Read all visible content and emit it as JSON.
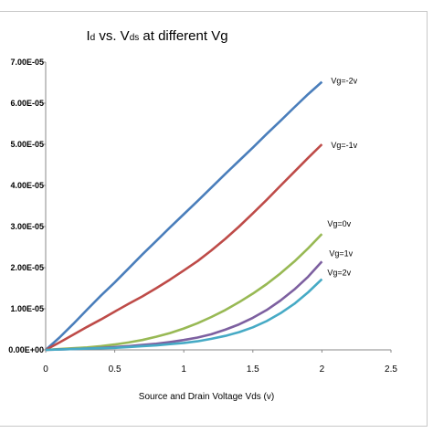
{
  "chart_data": {
    "type": "line",
    "title_parts": [
      {
        "text": "I",
        "sub": false
      },
      {
        "text": "d",
        "sub": true
      },
      {
        "text": " vs. V",
        "sub": false
      },
      {
        "text": "ds",
        "sub": true
      },
      {
        "text": " at different Vg",
        "sub": false
      }
    ],
    "xlabel": "Source and Drain Voltage Vds (v)",
    "ylabel": "",
    "xlim": [
      0,
      2.5
    ],
    "ylim": [
      0,
      7e-05
    ],
    "x_ticks": [
      "0",
      "0.5",
      "1",
      "1.5",
      "2",
      "2.5"
    ],
    "y_ticks": [
      "0.00E+00",
      "1.00E-05",
      "2.00E-05",
      "3.00E-05",
      "4.00E-05",
      "5.00E-05",
      "6.00E-05",
      "7.00E-05"
    ],
    "grid": false,
    "legend": "none",
    "x": [
      0,
      0.1,
      0.2,
      0.3,
      0.4,
      0.5,
      0.6,
      0.7,
      0.8,
      0.9,
      1.0,
      1.1,
      1.2,
      1.3,
      1.4,
      1.5,
      1.6,
      1.7,
      1.8,
      1.9,
      2.0
    ],
    "series": [
      {
        "name": "Vg=-2v",
        "color": "#4a7ebb",
        "values": [
          0,
          3e-06,
          6.3e-06,
          9.8e-06,
          1.32e-05,
          1.64e-05,
          1.98e-05,
          2.32e-05,
          2.65e-05,
          2.98e-05,
          3.3e-05,
          3.62e-05,
          3.95e-05,
          4.28e-05,
          4.6e-05,
          4.92e-05,
          5.25e-05,
          5.57e-05,
          5.9e-05,
          6.22e-05,
          6.52e-05
        ]
      },
      {
        "name": "Vg=-1v",
        "color": "#be4b48",
        "values": [
          0,
          1.8e-06,
          3.7e-06,
          5.6e-06,
          7.4e-06,
          9.3e-06,
          1.12e-05,
          1.3e-05,
          1.5e-05,
          1.71e-05,
          1.93e-05,
          2.16e-05,
          2.42e-05,
          2.7e-05,
          3e-05,
          3.32e-05,
          3.65e-05,
          3.99e-05,
          4.33e-05,
          4.67e-05,
          5e-05
        ]
      },
      {
        "name": "Vg=0v",
        "color": "#98b954",
        "values": [
          0,
          2e-07,
          4e-07,
          6e-07,
          9e-07,
          1.3e-06,
          1.8e-06,
          2.4e-06,
          3.2e-06,
          4.1e-06,
          5.2e-06,
          6.5e-06,
          8e-06,
          9.7e-06,
          1.16e-05,
          1.37e-05,
          1.6e-05,
          1.86e-05,
          2.15e-05,
          2.47e-05,
          2.82e-05
        ]
      },
      {
        "name": "Vg=1v",
        "color": "#7d60a0",
        "values": [
          0,
          1e-07,
          2e-07,
          3e-07,
          5e-07,
          7e-07,
          9e-07,
          1.2e-06,
          1.5e-06,
          1.9e-06,
          2.4e-06,
          3e-06,
          3.8e-06,
          4.9e-06,
          6.2e-06,
          7.8e-06,
          9.7e-06,
          1.2e-05,
          1.47e-05,
          1.78e-05,
          2.15e-05
        ]
      },
      {
        "name": "Vg=2v",
        "color": "#46aac5",
        "values": [
          0,
          1e-07,
          2e-07,
          3e-07,
          4e-07,
          5e-07,
          7e-07,
          9e-07,
          1.1e-06,
          1.4e-06,
          1.7e-06,
          2.1e-06,
          2.7e-06,
          3.4e-06,
          4.3e-06,
          5.5e-06,
          7e-06,
          8.9e-06,
          1.12e-05,
          1.4e-05,
          1.72e-05
        ]
      }
    ]
  }
}
